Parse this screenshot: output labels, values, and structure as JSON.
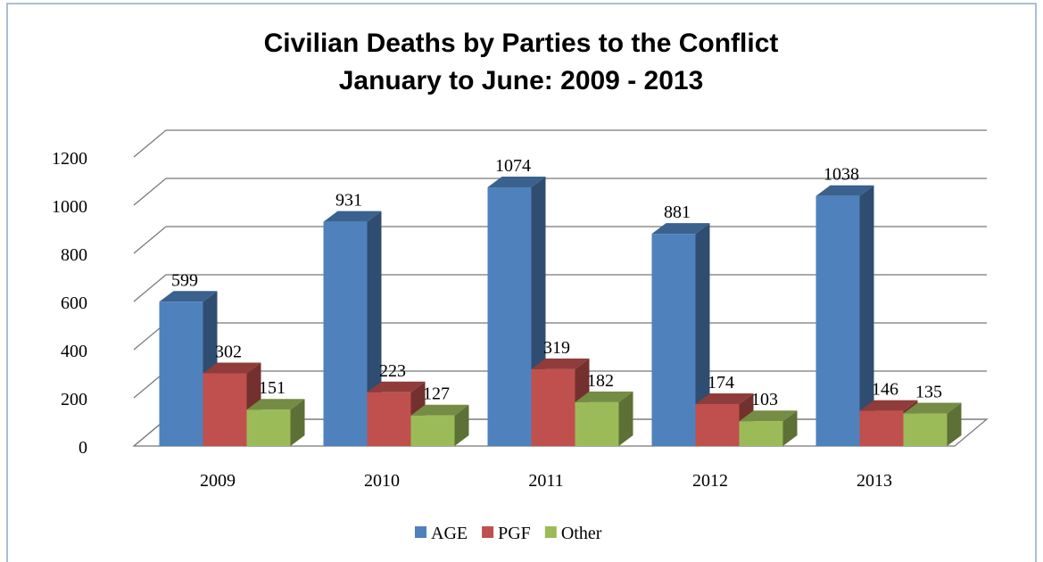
{
  "chart_data": {
    "type": "bar3d",
    "title": "Civilian Deaths by Parties to the Conflict",
    "subtitle": "January to June: 2009 - 2013",
    "categories": [
      "2009",
      "2010",
      "2011",
      "2012",
      "2013"
    ],
    "series": [
      {
        "name": "AGE",
        "color": "#4f81bd",
        "values": [
          599,
          931,
          1074,
          881,
          1038
        ]
      },
      {
        "name": "PGF",
        "color": "#c0504d",
        "values": [
          302,
          223,
          319,
          174,
          146
        ]
      },
      {
        "name": "Other",
        "color": "#9bbb59",
        "values": [
          151,
          127,
          182,
          103,
          135
        ]
      }
    ],
    "ylim": [
      0,
      1200
    ],
    "yticks": [
      0,
      200,
      400,
      600,
      800,
      1000,
      1200
    ],
    "grid": true,
    "legend": "bottom"
  }
}
